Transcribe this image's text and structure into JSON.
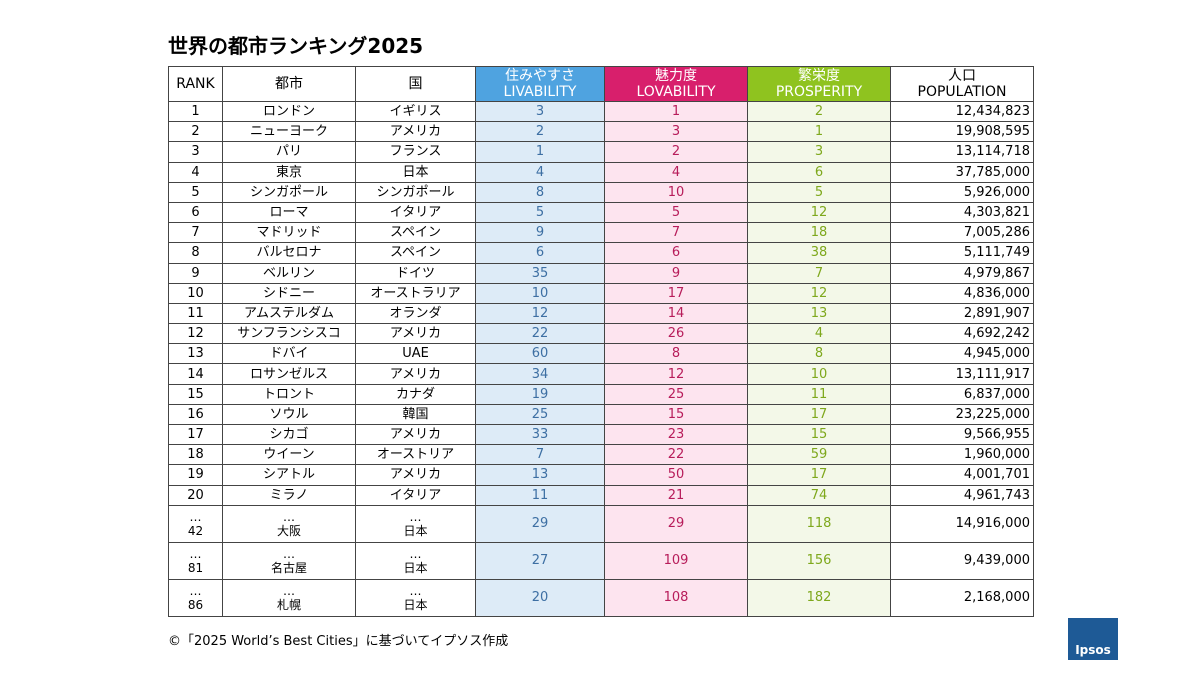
{
  "title": "世界の都市ランキング2025",
  "table": {
    "header": [
      [
        "RANK"
      ],
      [
        "都市"
      ],
      [
        "国"
      ],
      [
        "住みやすさ",
        "LIVABILITY"
      ],
      [
        "魅力度",
        "LOVABILITY"
      ],
      [
        "繁栄度",
        "PROSPERITY"
      ],
      [
        "人口",
        "POPULATION"
      ]
    ],
    "rows": [
      [
        1,
        "ロンドン",
        "イギリス",
        3,
        1,
        2,
        "12,434,823"
      ],
      [
        2,
        "ニューヨーク",
        "アメリカ",
        2,
        3,
        1,
        "19,908,595"
      ],
      [
        3,
        "パリ",
        "フランス",
        1,
        2,
        3,
        "13,114,718"
      ],
      [
        4,
        "東京",
        "日本",
        4,
        4,
        6,
        "37,785,000"
      ],
      [
        5,
        "シンガポール",
        "シンガポール",
        8,
        10,
        5,
        "5,926,000"
      ],
      [
        6,
        "ローマ",
        "イタリア",
        5,
        5,
        12,
        "4,303,821"
      ],
      [
        7,
        "マドリッド",
        "スペイン",
        9,
        7,
        18,
        "7,005,286"
      ],
      [
        8,
        "バルセロナ",
        "スペイン",
        6,
        6,
        38,
        "5,111,749"
      ],
      [
        9,
        "ベルリン",
        "ドイツ",
        35,
        9,
        7,
        "4,979,867"
      ],
      [
        10,
        "シドニー",
        "オーストラリア",
        10,
        17,
        12,
        "4,836,000"
      ],
      [
        11,
        "アムステルダム",
        "オランダ",
        12,
        14,
        13,
        "2,891,907"
      ],
      [
        12,
        "サンフランシスコ",
        "アメリカ",
        22,
        26,
        4,
        "4,692,242"
      ],
      [
        13,
        "ドバイ",
        "UAE",
        60,
        8,
        8,
        "4,945,000"
      ],
      [
        14,
        "ロサンゼルス",
        "アメリカ",
        34,
        12,
        10,
        "13,111,917"
      ],
      [
        15,
        "トロント",
        "カナダ",
        19,
        25,
        11,
        "6,837,000"
      ],
      [
        16,
        "ソウル",
        "韓国",
        25,
        15,
        17,
        "23,225,000"
      ],
      [
        17,
        "シカゴ",
        "アメリカ",
        33,
        23,
        15,
        "9,566,955"
      ],
      [
        18,
        "ウイーン",
        "オーストリア",
        7,
        22,
        59,
        "1,960,000"
      ],
      [
        19,
        "シアトル",
        "アメリカ",
        13,
        50,
        17,
        "4,001,701"
      ],
      [
        20,
        "ミラノ",
        "イタリア",
        11,
        21,
        74,
        "4,961,743"
      ],
      [
        42,
        "大阪",
        "日本",
        29,
        29,
        118,
        "14,916,000"
      ],
      [
        81,
        "名古屋",
        "日本",
        27,
        109,
        156,
        "9,439,000"
      ],
      [
        86,
        "札幌",
        "日本",
        20,
        108,
        182,
        "2,168,000"
      ]
    ],
    "breaks": [
      [
        "…",
        "…",
        "…"
      ],
      [
        "…",
        "…",
        "…"
      ],
      [
        "…",
        "…",
        "…"
      ]
    ]
  },
  "footer": "©「2025 World’s Best Cities」に基づいてイプソス作成",
  "logo": "Ipsos"
}
